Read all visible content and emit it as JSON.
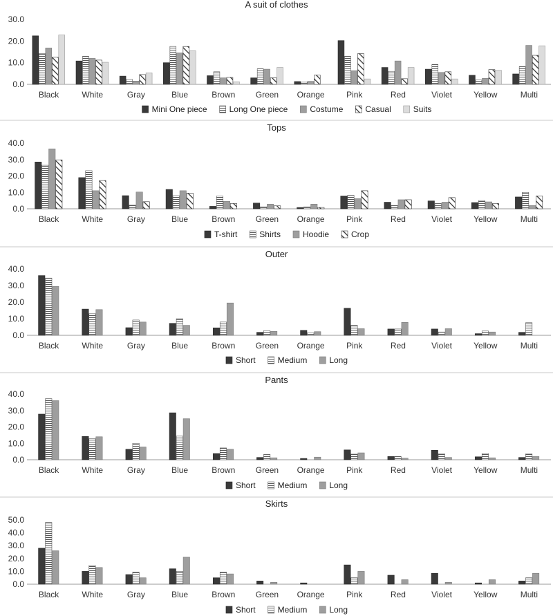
{
  "chart_data": [
    {
      "type": "bar",
      "title": "A suit of clothes",
      "categories": [
        "Black",
        "White",
        "Gray",
        "Blue",
        "Brown",
        "Green",
        "Orange",
        "Pink",
        "Red",
        "Violet",
        "Yellow",
        "Multi"
      ],
      "ylim": [
        0,
        30
      ],
      "yticks": [
        "0.0",
        "10.0",
        "20.0",
        "30.0"
      ],
      "series": [
        {
          "name": "Mini One piece",
          "pattern": "solid",
          "values": [
            22.4,
            10.8,
            3.8,
            10.0,
            4.0,
            3.0,
            1.3,
            20.2,
            7.8,
            7.0,
            4.2,
            4.8
          ]
        },
        {
          "name": "Long One piece",
          "pattern": "horizontal",
          "values": [
            14.2,
            13.0,
            2.3,
            17.5,
            5.8,
            7.2,
            1.0,
            13.0,
            6.0,
            9.2,
            2.0,
            8.2
          ]
        },
        {
          "name": "Costume",
          "pattern": "gray",
          "values": [
            16.8,
            12.0,
            1.5,
            14.5,
            3.0,
            7.0,
            1.4,
            6.3,
            10.8,
            5.5,
            2.8,
            18.0
          ]
        },
        {
          "name": "Casual",
          "pattern": "diagonal",
          "values": [
            12.5,
            11.2,
            4.5,
            17.5,
            3.2,
            3.0,
            4.3,
            14.2,
            2.6,
            5.8,
            6.8,
            13.4
          ]
        },
        {
          "name": "Suits",
          "pattern": "light",
          "values": [
            22.8,
            10.2,
            5.3,
            15.5,
            1.2,
            7.8,
            0,
            2.5,
            7.8,
            2.5,
            6.5,
            17.8
          ]
        }
      ]
    },
    {
      "type": "bar",
      "title": "Tops",
      "categories": [
        "Black",
        "White",
        "Gray",
        "Blue",
        "Brown",
        "Green",
        "Orange",
        "Pink",
        "Red",
        "Violet",
        "Yellow",
        "Multi"
      ],
      "ylim": [
        0,
        40
      ],
      "yticks": [
        "0.0",
        "10.0",
        "20.0",
        "30.0",
        "40.0"
      ],
      "series": [
        {
          "name": "T-shirt",
          "pattern": "solid",
          "values": [
            28.5,
            19.0,
            8.0,
            11.8,
            1.5,
            3.5,
            0.8,
            7.8,
            4.0,
            4.8,
            3.8,
            7.2
          ]
        },
        {
          "name": "Shirts",
          "pattern": "horizontal",
          "values": [
            26.5,
            23.2,
            2.2,
            8.0,
            7.8,
            1.2,
            1.2,
            8.2,
            2.0,
            3.2,
            5.0,
            10.0
          ]
        },
        {
          "name": "Hoodie",
          "pattern": "gray",
          "values": [
            36.5,
            11.0,
            10.2,
            11.0,
            4.5,
            2.8,
            2.8,
            6.2,
            5.5,
            4.0,
            4.2,
            2.0
          ]
        },
        {
          "name": "Crop",
          "pattern": "diagonal",
          "values": [
            29.8,
            17.2,
            4.3,
            9.5,
            3.2,
            1.8,
            0.8,
            11.0,
            5.5,
            6.8,
            3.2,
            7.8
          ]
        }
      ]
    },
    {
      "type": "bar",
      "title": "Outer",
      "categories": [
        "Black",
        "White",
        "Gray",
        "Blue",
        "Brown",
        "Green",
        "Orange",
        "Pink",
        "Red",
        "Violet",
        "Yellow",
        "Multi"
      ],
      "ylim": [
        0,
        40
      ],
      "yticks": [
        "0.0",
        "10.0",
        "20.0",
        "30.0",
        "40.0"
      ],
      "series": [
        {
          "name": "Short",
          "pattern": "solid",
          "values": [
            36.0,
            15.8,
            4.6,
            7.2,
            4.5,
            1.8,
            3.0,
            16.3,
            3.8,
            3.8,
            1.0,
            1.8
          ]
        },
        {
          "name": "Medium",
          "pattern": "horizontal",
          "values": [
            34.5,
            13.0,
            9.2,
            10.0,
            8.0,
            2.8,
            1.5,
            6.0,
            3.8,
            2.0,
            2.6,
            7.6
          ]
        },
        {
          "name": "Long",
          "pattern": "gray",
          "values": [
            29.5,
            15.5,
            8.0,
            6.0,
            19.5,
            2.4,
            2.2,
            4.0,
            7.8,
            4.0,
            2.0,
            0
          ]
        }
      ]
    },
    {
      "type": "bar",
      "title": "Pants",
      "categories": [
        "Black",
        "White",
        "Gray",
        "Blue",
        "Brown",
        "Green",
        "Orange",
        "Pink",
        "Red",
        "Violet",
        "Yellow",
        "Multi"
      ],
      "ylim": [
        0,
        40
      ],
      "yticks": [
        "0.0",
        "10.0",
        "20.0",
        "30.0",
        "40.0"
      ],
      "series": [
        {
          "name": "Short",
          "pattern": "solid",
          "values": [
            27.8,
            14.2,
            6.4,
            28.6,
            3.8,
            1.4,
            0.8,
            6.0,
            2.0,
            5.8,
            1.8,
            1.4
          ]
        },
        {
          "name": "Medium",
          "pattern": "horizontal",
          "values": [
            37.2,
            12.8,
            10.0,
            14.4,
            7.2,
            3.2,
            0,
            3.4,
            2.0,
            3.6,
            3.8,
            3.6
          ]
        },
        {
          "name": "Long",
          "pattern": "gray",
          "values": [
            36.0,
            14.0,
            7.8,
            25.0,
            6.4,
            1.2,
            1.6,
            4.2,
            1.0,
            1.4,
            1.2,
            2.0
          ]
        }
      ]
    },
    {
      "type": "bar",
      "title": "Skirts",
      "categories": [
        "Black",
        "White",
        "Gray",
        "Blue",
        "Brown",
        "Green",
        "Orange",
        "Pink",
        "Red",
        "Violet",
        "Yellow",
        "Multi"
      ],
      "ylim": [
        0,
        50
      ],
      "yticks": [
        "0.0",
        "10.0",
        "20.0",
        "30.0",
        "40.0",
        "50.0"
      ],
      "series": [
        {
          "name": "Short",
          "pattern": "solid",
          "values": [
            28.0,
            10.0,
            7.5,
            12.0,
            5.0,
            2.5,
            1.0,
            15.0,
            7.0,
            8.5,
            1.0,
            2.5
          ]
        },
        {
          "name": "Medium",
          "pattern": "horizontal",
          "values": [
            48.0,
            14.5,
            9.5,
            10.0,
            9.5,
            0,
            0,
            5.0,
            0,
            0,
            0,
            5.0
          ]
        },
        {
          "name": "Long",
          "pattern": "gray",
          "values": [
            26.0,
            13.0,
            5.0,
            21.0,
            8.0,
            1.5,
            0,
            10.0,
            3.5,
            1.5,
            3.5,
            8.5
          ]
        }
      ]
    }
  ]
}
